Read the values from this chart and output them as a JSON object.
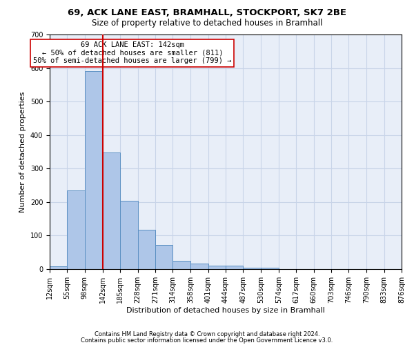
{
  "title1": "69, ACK LANE EAST, BRAMHALL, STOCKPORT, SK7 2BE",
  "title2": "Size of property relative to detached houses in Bramhall",
  "xlabel": "Distribution of detached houses by size in Bramhall",
  "ylabel": "Number of detached properties",
  "footer1": "Contains HM Land Registry data © Crown copyright and database right 2024.",
  "footer2": "Contains public sector information licensed under the Open Government Licence v3.0.",
  "annotation_line1": "69 ACK LANE EAST: 142sqm",
  "annotation_line2": "← 50% of detached houses are smaller (811)",
  "annotation_line3": "50% of semi-detached houses are larger (799) →",
  "bin_edges": [
    12,
    55,
    98,
    142,
    185,
    228,
    271,
    314,
    358,
    401,
    444,
    487,
    530,
    574,
    617,
    660,
    703,
    746,
    790,
    833,
    876
  ],
  "bar_values": [
    8,
    235,
    590,
    348,
    203,
    118,
    73,
    25,
    16,
    10,
    10,
    5,
    5,
    0,
    0,
    0,
    0,
    0,
    0,
    0
  ],
  "bar_color": "#aec6e8",
  "bar_edge_color": "#5a8fc2",
  "vline_x": 142,
  "vline_color": "#cc0000",
  "annotation_box_edge_color": "#cc0000",
  "ylim": [
    0,
    700
  ],
  "yticks": [
    0,
    100,
    200,
    300,
    400,
    500,
    600,
    700
  ],
  "grid_color": "#c8d4e8",
  "background_color": "#e8eef8",
  "title1_fontsize": 9.5,
  "title2_fontsize": 8.5,
  "xlabel_fontsize": 8,
  "ylabel_fontsize": 8,
  "tick_fontsize": 7,
  "footer_fontsize": 6,
  "annotation_fontsize": 7.5
}
